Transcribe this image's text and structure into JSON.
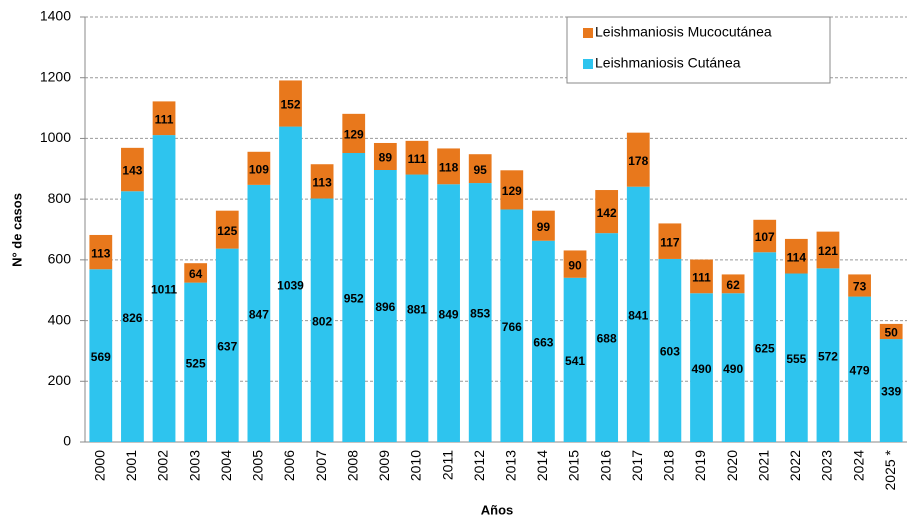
{
  "chart_data": {
    "type": "stacked_bar",
    "x_label": "Años",
    "y_label": "N° de casos",
    "categories": [
      "2000",
      "2001",
      "2002",
      "2003",
      "2004",
      "2005",
      "2006",
      "2007",
      "2008",
      "2009",
      "2010",
      "2011",
      "2012",
      "2013",
      "2014",
      "2015",
      "2016",
      "2017",
      "2018",
      "2019",
      "2020",
      "2021",
      "2022",
      "2023",
      "2024",
      "2025 *"
    ],
    "series": [
      {
        "name": "Leishmaniosis Cutánea",
        "color": "#2ec4ee",
        "values": [
          569,
          826,
          1011,
          525,
          637,
          847,
          1039,
          802,
          952,
          896,
          881,
          849,
          853,
          766,
          663,
          541,
          688,
          841,
          603,
          490,
          490,
          625,
          555,
          572,
          479,
          339
        ]
      },
      {
        "name": "Leishmaniosis Mucocutánea",
        "color": "#e8781c",
        "values": [
          113,
          143,
          111,
          64,
          125,
          109,
          152,
          113,
          129,
          89,
          111,
          118,
          95,
          129,
          99,
          90,
          142,
          178,
          117,
          111,
          62,
          107,
          114,
          121,
          73,
          50
        ]
      }
    ],
    "ylim": [
      0,
      1400
    ],
    "yticks": [
      0,
      200,
      400,
      600,
      800,
      1000,
      1200,
      1400
    ],
    "grid": true,
    "legend": "top-right"
  }
}
